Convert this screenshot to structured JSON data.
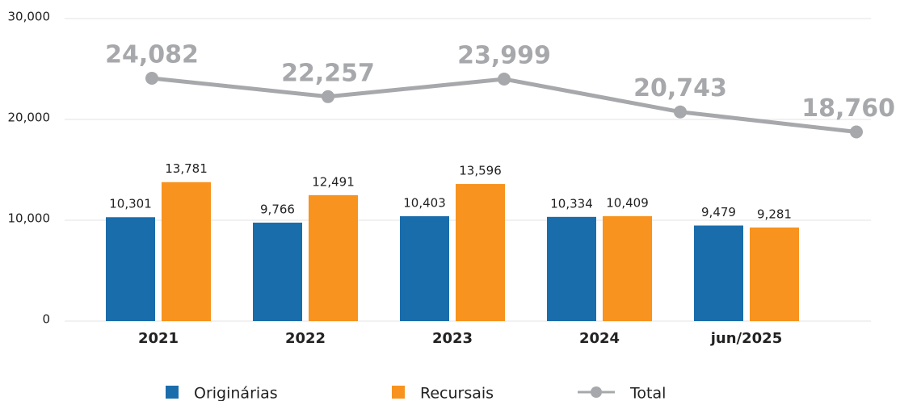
{
  "chart_data": {
    "type": "bar",
    "categories": [
      "2021",
      "2022",
      "2023",
      "2024",
      "jun/2025"
    ],
    "series": [
      {
        "name": "Originárias",
        "color": "#1a6dab",
        "values": [
          10301,
          9766,
          10403,
          10334,
          9479
        ],
        "value_labels": [
          "10,301",
          "9,766",
          "10,403",
          "10,334",
          "9,479"
        ]
      },
      {
        "name": "Recursais",
        "color": "#f7931e",
        "values": [
          13781,
          12491,
          13596,
          10409,
          9281
        ],
        "value_labels": [
          "13,781",
          "12,491",
          "13,596",
          "10,409",
          "9,281"
        ]
      },
      {
        "name": "Total",
        "type": "line",
        "color": "#a7a8ab",
        "values": [
          24082,
          22257,
          23999,
          20743,
          18760
        ],
        "value_labels": [
          "24,082",
          "22,257",
          "23,999",
          "20,743",
          "18,760"
        ]
      }
    ],
    "ylim": [
      0,
      30000
    ],
    "yticks": [
      0,
      {
        "value": 10000,
        "label": "10,000"
      },
      {
        "value": 20000,
        "label": "20,000"
      },
      {
        "value": 30000,
        "label": "30,000"
      }
    ],
    "grid": true
  }
}
